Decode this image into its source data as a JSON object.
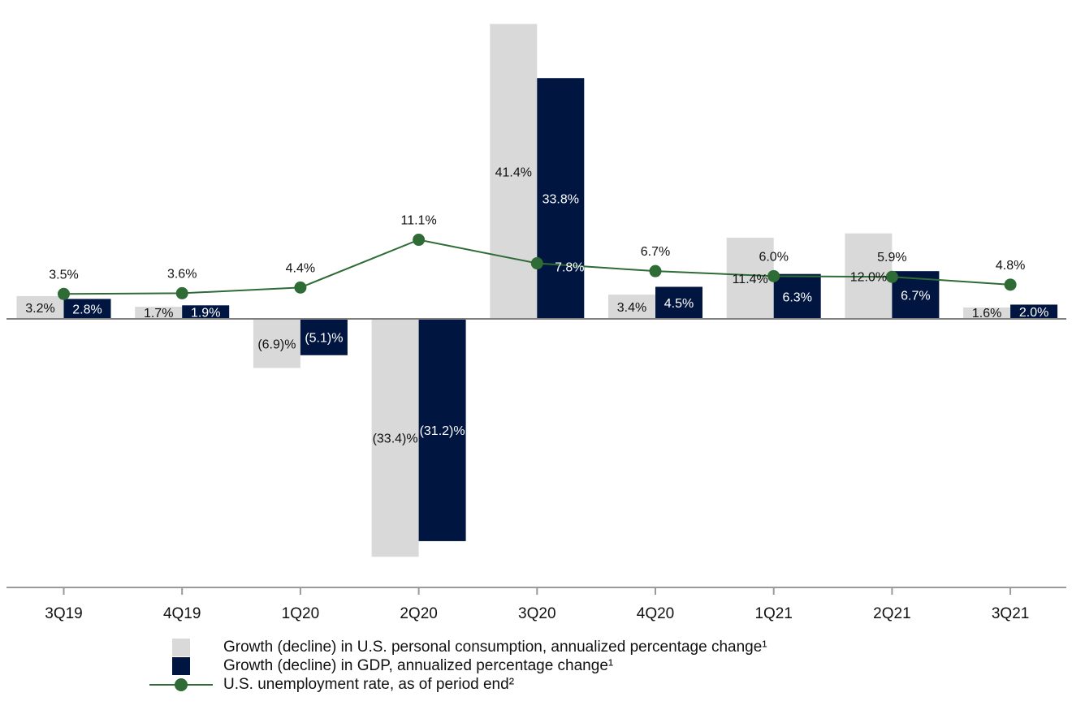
{
  "chart_data": {
    "type": "bar",
    "categories": [
      "3Q19",
      "4Q19",
      "1Q20",
      "2Q20",
      "3Q20",
      "4Q20",
      "1Q21",
      "2Q21",
      "3Q21"
    ],
    "series": [
      {
        "name": "Growth (decline) in U.S. personal consumption, annualized percentage change¹",
        "type": "bar",
        "color": "#d9d9d9",
        "label_color": "#111111",
        "values": [
          3.2,
          1.7,
          -6.9,
          -33.4,
          41.4,
          3.4,
          11.4,
          12.0,
          1.6
        ],
        "labels": [
          "3.2%",
          "1.7%",
          "(6.9)%",
          "(33.4)%",
          "41.4%",
          "3.4%",
          "11.4%",
          "12.0%",
          "1.6%"
        ]
      },
      {
        "name": "Growth (decline) in GDP, annualized percentage change¹",
        "type": "bar",
        "color": "#001641",
        "label_color": "#ffffff",
        "values": [
          2.8,
          1.9,
          -5.1,
          -31.2,
          33.8,
          4.5,
          6.3,
          6.7,
          2.0
        ],
        "labels": [
          "2.8%",
          "1.9%",
          "(5.1)%",
          "(31.2)%",
          "33.8%",
          "4.5%",
          "6.3%",
          "6.7%",
          "2.0%"
        ]
      },
      {
        "name": "U.S. unemployment rate, as of period end²",
        "type": "line",
        "color": "#2e6b35",
        "values": [
          3.5,
          3.6,
          4.4,
          11.1,
          7.8,
          6.7,
          6.0,
          5.9,
          4.8
        ],
        "labels": [
          "3.5%",
          "3.6%",
          "4.4%",
          "11.1%",
          "7.8%",
          "6.7%",
          "6.0%",
          "5.9%",
          "4.8%"
        ]
      }
    ],
    "ylim": [
      -36,
      41.4
    ],
    "grid": false,
    "legend_position": "bottom"
  }
}
